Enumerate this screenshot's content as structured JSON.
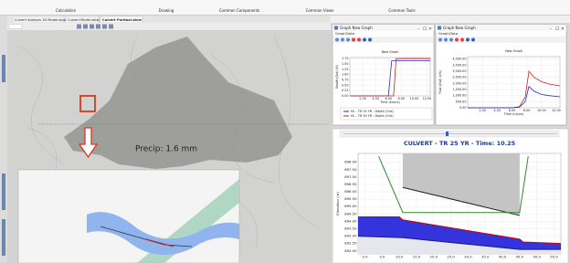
{
  "ribbon": {
    "groups": [
      "Calculation",
      "Drawing",
      "Common Components",
      "Common Views",
      "Common Tools"
    ]
  },
  "tabs": [
    "Culvert Analysis 1D Model.stow",
    "Culvert Model.stow",
    "Culvert Portioal.stow"
  ],
  "map": {
    "annotation": "Precip: 1.6 mm"
  },
  "graph_windows": [
    {
      "window_title": "Graph New Graph",
      "menu": [
        "Graph",
        "Data"
      ],
      "chart": {
        "type": "line",
        "title": "New Graph",
        "x_label": "Time (hours)",
        "y_label": "Depth (Out) (ft)",
        "xlim": [
          0,
          12.5
        ],
        "ylim": [
          0,
          1.8
        ],
        "xticks": [
          {
            "value": 2,
            "label": "2.00"
          },
          {
            "value": 4,
            "label": "4.00"
          },
          {
            "value": 6,
            "label": "6.00"
          },
          {
            "value": 8,
            "label": "8.00"
          },
          {
            "value": 10,
            "label": "10.00"
          },
          {
            "value": 12,
            "label": "12.00"
          }
        ],
        "yticks": [
          {
            "value": 0,
            "label": "0.00"
          },
          {
            "value": 0.25,
            "label": "0.25"
          },
          {
            "value": 0.5,
            "label": "0.50"
          },
          {
            "value": 0.75,
            "label": "0.75"
          },
          {
            "value": 1,
            "label": "1.00"
          },
          {
            "value": 1.25,
            "label": "1.25"
          },
          {
            "value": 1.5,
            "label": "1.50"
          },
          {
            "value": 1.75,
            "label": "1.75"
          }
        ],
        "grid": true,
        "legend": "bottom",
        "series": [
          {
            "name": "HL - TR 25 YR - Depth (Out)",
            "color": "#2a2ad0",
            "x": [
              0,
              6,
              6.5,
              12.5
            ],
            "values": [
              0,
              0,
              1.65,
              1.65
            ]
          },
          {
            "name": "HL - TR 50 YR - Depth (Out)",
            "color": "#d02020",
            "x": [
              0,
              6.8,
              7.2,
              12.5
            ],
            "values": [
              0,
              0,
              1.75,
              1.75
            ]
          }
        ]
      }
    },
    {
      "window_title": "Graph New Graph",
      "menu": [
        "Graph",
        "Data"
      ],
      "chart": {
        "type": "line",
        "title": "New Graph",
        "x_label": "Time (hours)",
        "y_label": "Flow (Out) (cfs)",
        "xlim": [
          0,
          12.5
        ],
        "ylim": [
          0,
          4200
        ],
        "xticks": [
          {
            "value": 2,
            "label": "2.00"
          },
          {
            "value": 4,
            "label": "4.00"
          },
          {
            "value": 6,
            "label": "6.00"
          },
          {
            "value": 8,
            "label": "8.00"
          },
          {
            "value": 10,
            "label": "10.00"
          },
          {
            "value": 12,
            "label": "12.00"
          }
        ],
        "yticks": [
          {
            "value": 0,
            "label": "0.00"
          },
          {
            "value": 500,
            "label": "500.00"
          },
          {
            "value": 1000,
            "label": "1,000.00"
          },
          {
            "value": 1500,
            "label": "1,500.00"
          },
          {
            "value": 2000,
            "label": "2,000.00"
          },
          {
            "value": 2500,
            "label": "2,500.00"
          },
          {
            "value": 3000,
            "label": "3,000.00"
          },
          {
            "value": 3500,
            "label": "3,500.00"
          },
          {
            "value": 4000,
            "label": "4,000.00"
          }
        ],
        "grid": true,
        "series": [
          {
            "color": "#d02020",
            "x": [
              0,
              6,
              7,
              7.8,
              8.3,
              9,
              10,
              11,
              12.5
            ],
            "values": [
              0,
              0,
              80,
              900,
              3000,
              2500,
              2150,
              1950,
              1800
            ]
          },
          {
            "color": "#2a2ad0",
            "x": [
              0,
              6,
              7,
              7.8,
              8.3,
              9,
              10,
              11,
              12.5
            ],
            "values": [
              0,
              0,
              50,
              500,
              1750,
              1350,
              1100,
              1000,
              900
            ]
          }
        ]
      }
    }
  ],
  "profile": {
    "chart": {
      "type": "line",
      "title": "CULVERT - TR 25 YR - Time: 10.25",
      "y_label": "Elevation (m)",
      "xlim": [
        -2,
        57
      ],
      "ylim": [
        891.8,
        898.6
      ],
      "xticks": [
        {
          "value": 0,
          "label": "0.0"
        },
        {
          "value": 5,
          "label": "5.0"
        },
        {
          "value": 10,
          "label": "10.0"
        },
        {
          "value": 15,
          "label": "15.0"
        },
        {
          "value": 20,
          "label": "20.0"
        },
        {
          "value": 25,
          "label": "25.0"
        },
        {
          "value": 30,
          "label": "30.0"
        },
        {
          "value": 35,
          "label": "35.0"
        },
        {
          "value": 40,
          "label": "40.0"
        },
        {
          "value": 45,
          "label": "45.0"
        },
        {
          "value": 50,
          "label": "50.0"
        },
        {
          "value": 55,
          "label": "55.0"
        }
      ],
      "yticks": [
        {
          "value": 892,
          "label": "892.00"
        },
        {
          "value": 892.5,
          "label": "892.50"
        },
        {
          "value": 893,
          "label": "893.00"
        },
        {
          "value": 893.5,
          "label": "893.50"
        },
        {
          "value": 894,
          "label": "894.00"
        },
        {
          "value": 894.5,
          "label": "894.50"
        },
        {
          "value": 895,
          "label": "895.00"
        },
        {
          "value": 895.5,
          "label": "895.50"
        },
        {
          "value": 896,
          "label": "896.00"
        },
        {
          "value": 896.5,
          "label": "896.50"
        },
        {
          "value": 897,
          "label": "897.00"
        },
        {
          "value": 897.5,
          "label": "897.50"
        },
        {
          "value": 898,
          "label": "898.00"
        }
      ],
      "grid": true,
      "series": [
        {
          "color": "#222222",
          "fill": "#c4c4c4",
          "area": "above",
          "x": [
            11,
            45
          ],
          "values": [
            896.3,
            894.4
          ]
        },
        {
          "color": "#cc0000",
          "fill": "#3434dc",
          "area": "below",
          "x": [
            -2,
            10,
            11,
            45,
            46,
            57
          ],
          "values": [
            894.3,
            894.3,
            894.1,
            892.8,
            892.6,
            892.5
          ]
        },
        {
          "color": "#1a1a8a",
          "fill": "#e6e6ee",
          "area": "below",
          "x": [
            -2,
            11,
            45,
            57
          ],
          "values": [
            893.0,
            892.9,
            892.1,
            892.1
          ]
        },
        {
          "color": "#2e8b2e",
          "x": [
            4,
            11,
            45,
            47.5
          ],
          "values": [
            898.4,
            894.6,
            894.6,
            898.4
          ]
        }
      ]
    }
  }
}
